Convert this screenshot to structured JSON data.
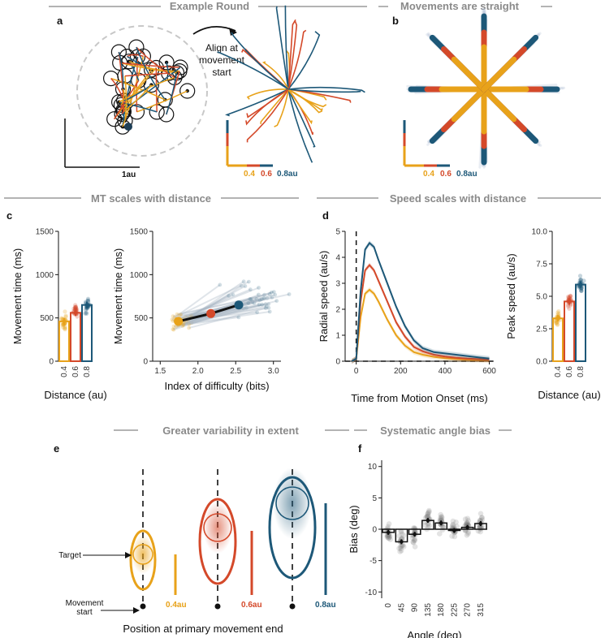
{
  "colors": {
    "c04": "#e8a21a",
    "c06": "#d4492a",
    "c08": "#1d5878",
    "grey": "#8a8a8a",
    "dot": "#9aa0a6"
  },
  "sections": {
    "example_round": "Example Round",
    "straight": "Movements are straight",
    "mt": "MT scales with distance",
    "speed": "Speed scales with distance",
    "variability": "Greater variability in extent",
    "angle": "Systematic angle bias"
  },
  "panels": {
    "a": "a",
    "b": "b",
    "c": "c",
    "d": "d",
    "e": "e",
    "f": "f"
  },
  "panel_a": {
    "align_text": [
      "Align at",
      "movement",
      "start"
    ],
    "scale_label": "1au",
    "legend": [
      "0.4",
      "0.6",
      "0.8au"
    ]
  },
  "panel_b": {
    "legend": [
      "0.4",
      "0.6",
      "0.8au"
    ]
  },
  "panel_e": {
    "target_label": "Target",
    "start_label": [
      "Movement",
      "start"
    ],
    "xlabel": "Position at primary movement end",
    "distance_labels": [
      "0.4au",
      "0.6au",
      "0.8au"
    ]
  },
  "chart_data": [
    {
      "id": "c_left",
      "type": "bar",
      "title": "",
      "xlabel": "Distance (au)",
      "ylabel": "Movement time (ms)",
      "categories": [
        "0.4",
        "0.6",
        "0.8"
      ],
      "values": [
        460,
        560,
        650
      ],
      "ylim": [
        0,
        1500
      ],
      "yticks": [
        0,
        500,
        1000,
        1500
      ]
    },
    {
      "id": "c_right",
      "type": "scatter",
      "title": "",
      "xlabel": "Index of difficulty (bits)",
      "ylabel": "Movement time (ms)",
      "x": [
        1.74,
        2.17,
        2.54
      ],
      "y": [
        460,
        550,
        650
      ],
      "xlim": [
        1.4,
        3.1
      ],
      "ylim": [
        0,
        1500
      ],
      "xticks": [
        "1.5",
        "2.0",
        "2.5",
        "3.0"
      ],
      "yticks": [
        0,
        500,
        1000,
        1500
      ]
    },
    {
      "id": "d_left",
      "type": "line",
      "title": "",
      "xlabel": "Time from Motion Onset (ms)",
      "ylabel": "Radial speed (au/s)",
      "x": [
        -20,
        0,
        20,
        40,
        60,
        80,
        100,
        140,
        180,
        220,
        260,
        300,
        350,
        400,
        450,
        500,
        550,
        600
      ],
      "series": [
        {
          "name": "0.4",
          "values": [
            0,
            0.1,
            1.7,
            2.6,
            2.75,
            2.6,
            2.3,
            1.6,
            1.0,
            0.6,
            0.35,
            0.25,
            0.17,
            0.12,
            0.08,
            0.06,
            0.05,
            0.04
          ]
        },
        {
          "name": "0.6",
          "values": [
            0,
            0.1,
            2.3,
            3.5,
            3.7,
            3.5,
            3.1,
            2.3,
            1.5,
            0.95,
            0.55,
            0.38,
            0.25,
            0.18,
            0.13,
            0.1,
            0.08,
            0.06
          ]
        },
        {
          "name": "0.8",
          "values": [
            0,
            0.1,
            2.7,
            4.3,
            4.55,
            4.4,
            3.9,
            3.0,
            2.1,
            1.35,
            0.8,
            0.5,
            0.35,
            0.3,
            0.25,
            0.2,
            0.15,
            0.1
          ]
        }
      ],
      "xlim": [
        -50,
        620
      ],
      "ylim": [
        0,
        5
      ],
      "xticks": [
        0,
        200,
        400,
        600
      ],
      "yticks": [
        0,
        1,
        2,
        3,
        4,
        5
      ]
    },
    {
      "id": "d_right",
      "type": "bar",
      "title": "",
      "xlabel": "Distance (au)",
      "ylabel": "Peak speed (au/s)",
      "categories": [
        "0.4",
        "0.6",
        "0.8"
      ],
      "values": [
        3.3,
        4.6,
        5.9
      ],
      "ylim": [
        0,
        10
      ],
      "yticks": [
        "0.0",
        "2.5",
        "5.0",
        "7.5",
        "10.0"
      ]
    },
    {
      "id": "f",
      "type": "bar",
      "title": "",
      "xlabel": "Angle (deg)",
      "ylabel": "Bias (deg)",
      "categories": [
        "0",
        "45",
        "90",
        "135",
        "180",
        "225",
        "270",
        "315"
      ],
      "values": [
        -0.5,
        -2.0,
        -0.8,
        1.4,
        1.0,
        -0.2,
        0.3,
        0.9
      ],
      "ylim": [
        -11,
        11
      ],
      "yticks": [
        -10,
        -5,
        0,
        5,
        10
      ]
    }
  ]
}
